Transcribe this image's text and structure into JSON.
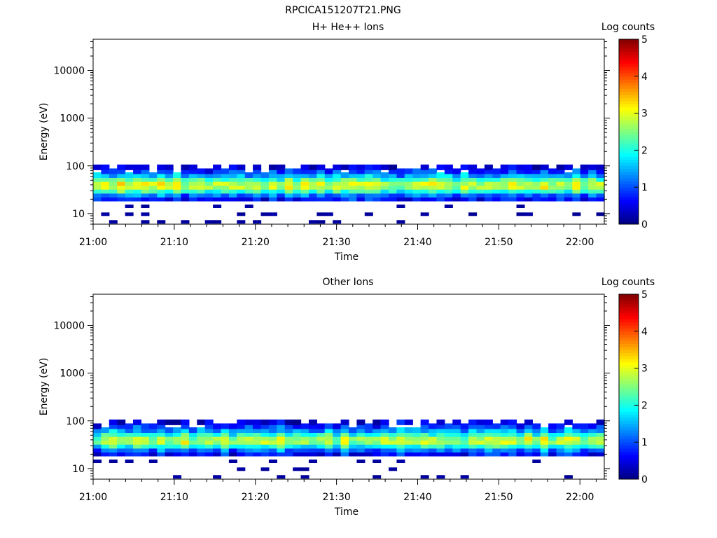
{
  "figure": {
    "title": "RPCICA151207T21.PNG"
  },
  "colormap": "jet",
  "chart_data": [
    {
      "type": "heatmap",
      "title": "H+ He++ Ions",
      "xlabel": "Time",
      "ylabel": "Energy (eV)",
      "x_ticks": [
        "21:00",
        "21:10",
        "21:20",
        "21:30",
        "21:40",
        "21:50",
        "22:00"
      ],
      "x_range": [
        "21:00",
        "22:03"
      ],
      "yscale": "log",
      "ylim": [
        6,
        45000
      ],
      "y_ticks": [
        "10",
        "100",
        "1000",
        "10000"
      ],
      "colorbar": {
        "label": "Log counts",
        "range": [
          0,
          5
        ],
        "ticks": [
          "0",
          "1",
          "2",
          "3",
          "4",
          "5"
        ]
      },
      "energy_bins_eV": [
        6.7,
        9.7,
        14.2,
        20.6,
        24.9,
        30.0,
        36.3,
        43.8,
        52.9,
        63.9,
        77.1,
        93.1
      ],
      "mean_profile_log_counts": [
        0.05,
        0.08,
        0.12,
        0.7,
        1.2,
        2.1,
        2.8,
        2.8,
        2.2,
        1.5,
        0.9,
        0.3
      ],
      "time_columns": 64,
      "sparse_low_energy_counts": true
    },
    {
      "type": "heatmap",
      "title": "Other Ions",
      "xlabel": "Time",
      "ylabel": "Energy (eV)",
      "x_ticks": [
        "21:00",
        "21:10",
        "21:20",
        "21:30",
        "21:40",
        "21:50",
        "22:00"
      ],
      "x_range": [
        "21:00",
        "22:03"
      ],
      "yscale": "log",
      "ylim": [
        6,
        45000
      ],
      "y_ticks": [
        "10",
        "100",
        "1000",
        "10000"
      ],
      "colorbar": {
        "label": "Log counts",
        "range": [
          0,
          5
        ],
        "ticks": [
          "0",
          "1",
          "2",
          "3",
          "4",
          "5"
        ]
      },
      "energy_bins_eV": [
        6.7,
        9.7,
        14.2,
        20.6,
        24.9,
        30.0,
        36.3,
        43.8,
        52.9,
        63.9,
        77.1,
        93.1
      ],
      "mean_profile_log_counts": [
        0.05,
        0.08,
        0.12,
        0.7,
        1.2,
        2.0,
        2.7,
        2.7,
        2.1,
        1.4,
        0.9,
        0.3
      ],
      "time_columns": 64,
      "sparse_low_energy_counts": true
    }
  ]
}
